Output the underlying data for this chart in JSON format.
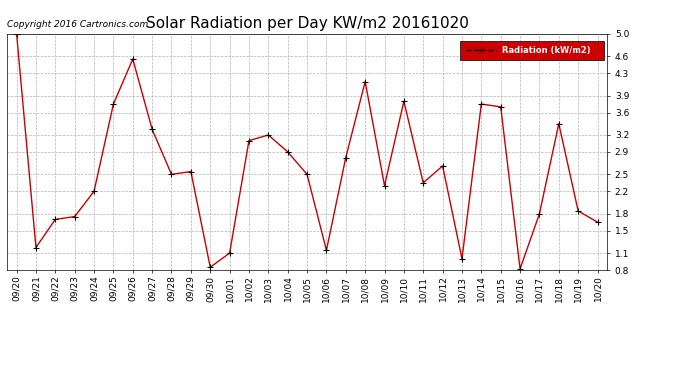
{
  "title": "Solar Radiation per Day KW/m2 20161020",
  "copyright_text": "Copyright 2016 Cartronics.com",
  "legend_label": "Radiation (kW/m2)",
  "dates": [
    "09/20",
    "09/21",
    "09/22",
    "09/23",
    "09/24",
    "09/25",
    "09/26",
    "09/27",
    "09/28",
    "09/29",
    "09/30",
    "10/01",
    "10/02",
    "10/03",
    "10/04",
    "10/05",
    "10/06",
    "10/07",
    "10/08",
    "10/09",
    "10/10",
    "10/11",
    "10/12",
    "10/13",
    "10/14",
    "10/15",
    "10/16",
    "10/17",
    "10/18",
    "10/19",
    "10/20"
  ],
  "values": [
    5.0,
    1.2,
    1.7,
    1.75,
    2.2,
    3.75,
    4.55,
    3.3,
    2.5,
    2.55,
    0.85,
    1.1,
    3.1,
    3.2,
    2.9,
    2.5,
    1.15,
    2.8,
    4.15,
    2.3,
    3.8,
    2.35,
    2.65,
    1.0,
    3.75,
    3.7,
    0.82,
    1.8,
    3.4,
    1.85,
    1.65
  ],
  "ylim": [
    0.8,
    5.0
  ],
  "yticks": [
    0.8,
    1.1,
    1.5,
    1.8,
    2.2,
    2.5,
    2.9,
    3.2,
    3.6,
    3.9,
    4.3,
    4.6,
    5.0
  ],
  "line_color": "#cc0000",
  "marker_color": "#000000",
  "bg_color": "#ffffff",
  "grid_color": "#aaaaaa",
  "legend_bg": "#cc0000",
  "legend_text_color": "#ffffff",
  "title_fontsize": 11,
  "tick_fontsize": 6.5,
  "copyright_fontsize": 6.5
}
